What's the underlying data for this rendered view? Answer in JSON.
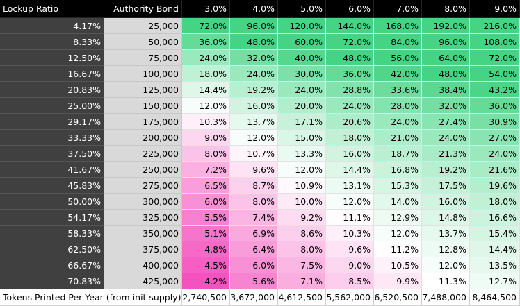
{
  "table": {
    "header": [
      "Lockup Ratio",
      "Authority Bond",
      "3.0%",
      "4.0%",
      "5.0%",
      "6.0%",
      "7.0%",
      "8.0%",
      "9.0%"
    ],
    "scale_colors": [
      "#f452be",
      "#ffffff",
      "#45d483"
    ],
    "rows": [
      [
        "4.17%",
        "25,000",
        "72.0%",
        "96.0%",
        "120.0%",
        "144.0%",
        "168.0%",
        "192.0%",
        "216.0%"
      ],
      [
        "8.33%",
        "50,000",
        "36.0%",
        "48.0%",
        "60.0%",
        "72.0%",
        "84.0%",
        "96.0%",
        "108.0%"
      ],
      [
        "12.50%",
        "75,000",
        "24.0%",
        "32.0%",
        "40.0%",
        "48.0%",
        "56.0%",
        "64.0%",
        "72.0%"
      ],
      [
        "16.67%",
        "100,000",
        "18.0%",
        "24.0%",
        "30.0%",
        "36.0%",
        "42.0%",
        "48.0%",
        "54.0%"
      ],
      [
        "20.83%",
        "125,000",
        "14.4%",
        "19.2%",
        "24.0%",
        "28.8%",
        "33.6%",
        "38.4%",
        "43.2%"
      ],
      [
        "25.00%",
        "150,000",
        "12.0%",
        "16.0%",
        "20.0%",
        "24.0%",
        "28.0%",
        "32.0%",
        "36.0%"
      ],
      [
        "29.17%",
        "175,000",
        "10.3%",
        "13.7%",
        "17.1%",
        "20.6%",
        "24.0%",
        "27.4%",
        "30.9%"
      ],
      [
        "33.33%",
        "200,000",
        "9.0%",
        "12.0%",
        "15.0%",
        "18.0%",
        "21.0%",
        "24.0%",
        "27.0%"
      ],
      [
        "37.50%",
        "225,000",
        "8.0%",
        "10.7%",
        "13.3%",
        "16.0%",
        "18.7%",
        "21.3%",
        "24.0%"
      ],
      [
        "41.67%",
        "250,000",
        "7.2%",
        "9.6%",
        "12.0%",
        "14.4%",
        "16.8%",
        "19.2%",
        "21.6%"
      ],
      [
        "45.83%",
        "275,000",
        "6.5%",
        "8.7%",
        "10.9%",
        "13.1%",
        "15.3%",
        "17.5%",
        "19.6%"
      ],
      [
        "50.00%",
        "300,000",
        "6.0%",
        "8.0%",
        "10.0%",
        "12.0%",
        "14.0%",
        "16.0%",
        "18.0%"
      ],
      [
        "54.17%",
        "325,000",
        "5.5%",
        "7.4%",
        "9.2%",
        "11.1%",
        "12.9%",
        "14.8%",
        "16.6%"
      ],
      [
        "58.33%",
        "350,000",
        "5.1%",
        "6.9%",
        "8.6%",
        "10.3%",
        "12.0%",
        "13.7%",
        "15.4%"
      ],
      [
        "62.50%",
        "375,000",
        "4.8%",
        "6.4%",
        "8.0%",
        "9.6%",
        "11.2%",
        "12.8%",
        "14.4%"
      ],
      [
        "66.67%",
        "400,000",
        "4.5%",
        "6.0%",
        "7.5%",
        "9.0%",
        "10.5%",
        "12.0%",
        "13.5%"
      ],
      [
        "70.83%",
        "425,000",
        "4.2%",
        "5.6%",
        "7.1%",
        "8.5%",
        "9.9%",
        "11.3%",
        "12.7%"
      ]
    ],
    "footer": [
      "Tokens Printed Per Year (from init supply)",
      "2,740,500",
      "3,672,000",
      "4,612,500",
      "5,562,000",
      "6,520,500",
      "7,488,000",
      "8,464,500"
    ]
  }
}
